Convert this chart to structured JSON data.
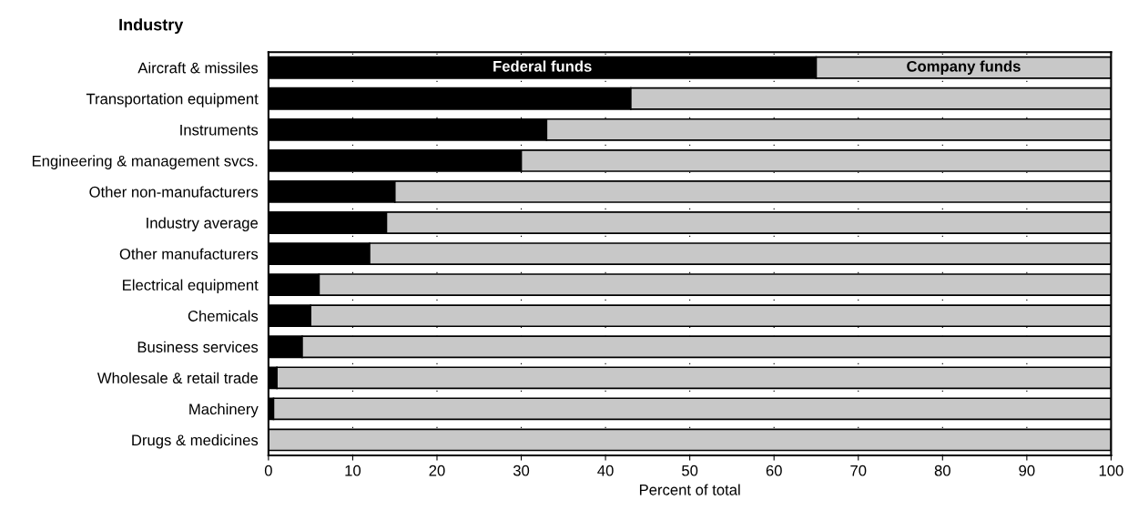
{
  "chart_data": {
    "type": "bar",
    "orientation": "horizontal",
    "stacked": true,
    "title": "Industry",
    "xlabel": "Percent of total",
    "categories": [
      "Aircraft & missiles",
      "Transportation equipment",
      "Instruments",
      "Engineering & management svcs.",
      "Other non-manufacturers",
      "Industry average",
      "Other manufacturers",
      "Electrical equipment",
      "Chemicals",
      "Business services",
      "Wholesale & retail trade",
      "Machinery",
      "Drugs & medicines"
    ],
    "series": [
      {
        "name": "Federal funds",
        "color": "#000000",
        "values": [
          65,
          43,
          33,
          30,
          15,
          14,
          12,
          6,
          5,
          4,
          1,
          0.6,
          0
        ]
      },
      {
        "name": "Company funds",
        "color": "#c8c8c8",
        "values": [
          35,
          57,
          67,
          70,
          85,
          86,
          88,
          94,
          95,
          96,
          99,
          99.4,
          100
        ]
      }
    ],
    "xlim": [
      0,
      100
    ],
    "xticks": [
      0,
      10,
      20,
      30,
      40,
      50,
      60,
      70,
      80,
      90,
      100
    ],
    "grid": "x",
    "legend": false
  }
}
